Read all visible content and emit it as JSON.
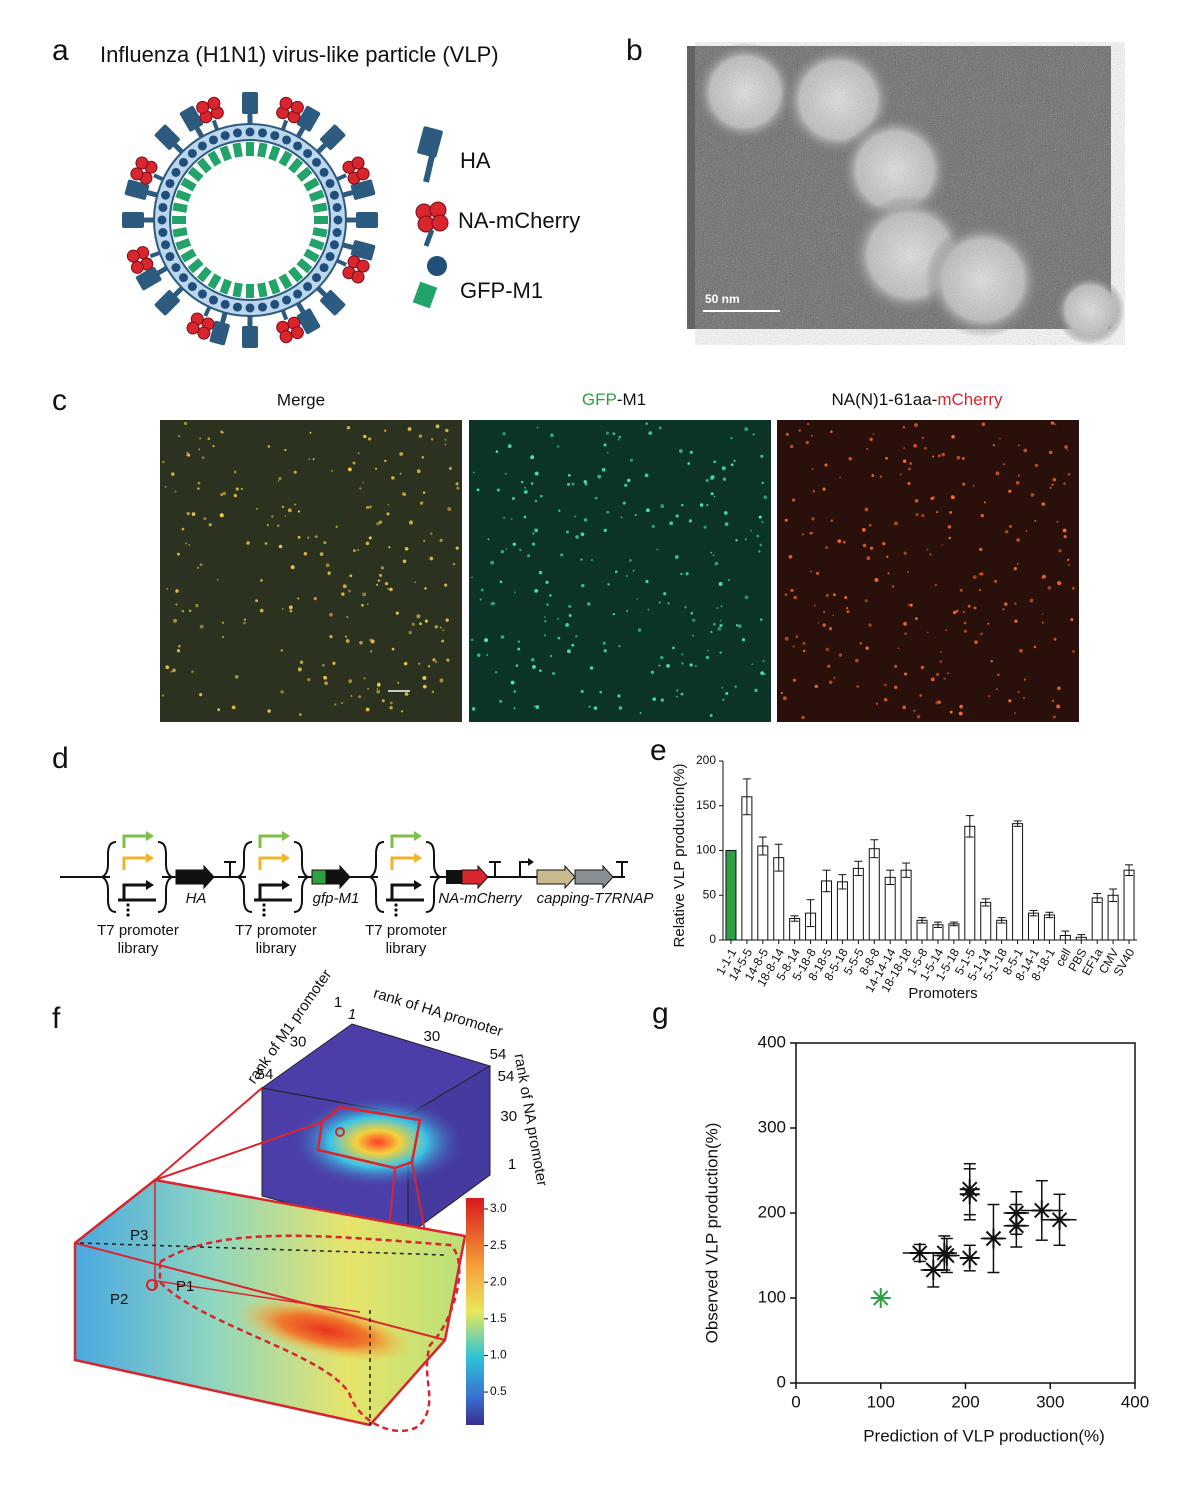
{
  "panel_labels": [
    "a",
    "b",
    "c",
    "d",
    "e",
    "f",
    "g"
  ],
  "a": {
    "title": "Influenza (H1N1) virus-like particle (VLP)",
    "legend": [
      "HA",
      "NA-mCherry",
      "GFP-M1"
    ]
  },
  "b": {
    "scale_bar": "50 nm"
  },
  "c": {
    "merge": "Merge",
    "gfp": {
      "colored": "GFP",
      "rest": "-M1"
    },
    "na": {
      "rest": "NA(N)1-61aa-",
      "colored": "mCherry"
    }
  },
  "d": {
    "genes": [
      "HA",
      "gfp-M1",
      "NA-mCherry",
      "capping-T7RNAP"
    ],
    "library": [
      "T7 promoter",
      "library"
    ]
  },
  "f": {
    "axes": [
      {
        "label": "rank of M1 promoter",
        "ticks": [
          1,
          30,
          54
        ]
      },
      {
        "label": "rank of HA promoter",
        "ticks": [
          1,
          30,
          54
        ]
      },
      {
        "label": "rank of NA promoter",
        "ticks": [
          1,
          30,
          54
        ]
      }
    ],
    "points": [
      "P1",
      "P2",
      "P3"
    ],
    "colorbar": {
      "lim": [
        0.05,
        3.15
      ],
      "ticks": [
        0.5,
        {
          "value": 1,
          "label": "1.0"
        },
        1.5,
        {
          "value": 2,
          "label": "2.0"
        },
        2.5,
        {
          "value": 3,
          "label": "3.0"
        }
      ]
    }
  },
  "chart_data": [
    {
      "type": "bar",
      "ylabel": "Relative VLP production(%)",
      "xlabel": "Promoters",
      "categories": [
        "1-1-1",
        "14-5-5",
        "14-8-5",
        "18-8-14",
        "5-8-14",
        "5-18-8",
        "8-18-5",
        "8-5-18",
        "5-5-5",
        "8-8-8",
        "14-14-14",
        "18-18-18",
        "1-5-8",
        "1-5-14",
        "1-5-18",
        "5-1-5",
        "5-1-14",
        "5-1-18",
        "8-5-1",
        "8-14-1",
        "8-18-1",
        "cell",
        "PBS",
        "EF1a",
        "CMV",
        "SV40"
      ],
      "values": [
        100,
        160,
        105,
        92,
        24,
        30,
        66,
        65,
        80,
        102,
        70,
        78,
        22,
        17,
        18,
        127,
        42,
        22,
        130,
        30,
        28,
        5,
        3,
        47,
        50,
        78
      ],
      "errors": [
        0,
        20,
        10,
        15,
        3,
        15,
        12,
        8,
        8,
        10,
        8,
        8,
        3,
        3,
        2,
        12,
        4,
        3,
        3,
        3,
        3,
        5,
        3,
        5,
        7,
        6
      ],
      "colors": [
        "#2ea043",
        "#ffffff",
        "#ffffff",
        "#ffffff",
        "#ffffff",
        "#ffffff",
        "#ffffff",
        "#ffffff",
        "#ffffff",
        "#ffffff",
        "#ffffff",
        "#ffffff",
        "#ffffff",
        "#ffffff",
        "#ffffff",
        "#ffffff",
        "#ffffff",
        "#ffffff",
        "#ffffff",
        "#ffffff",
        "#ffffff",
        "#ffffff",
        "#ffffff",
        "#ffffff",
        "#ffffff",
        "#ffffff"
      ],
      "ylim": [
        0,
        200
      ],
      "yticks": [
        0,
        50,
        100,
        150,
        200
      ]
    },
    {
      "type": "scatter",
      "xlabel": "Prediction of VLP production(%)",
      "ylabel": "Observed  VLP production(%)",
      "x": [
        100,
        146,
        162,
        175,
        178,
        205,
        205,
        205,
        233,
        260,
        260,
        290,
        311
      ],
      "values": [
        100,
        153,
        133,
        153,
        150,
        147,
        228,
        222,
        170,
        200,
        185,
        203,
        192
      ],
      "xerr": [
        0,
        20,
        15,
        15,
        15,
        10,
        10,
        10,
        15,
        15,
        15,
        25,
        20
      ],
      "yerr": [
        0,
        10,
        20,
        20,
        20,
        15,
        30,
        30,
        40,
        25,
        25,
        35,
        30
      ],
      "colors": [
        "#2ea043",
        "#111111",
        "#111111",
        "#111111",
        "#111111",
        "#111111",
        "#111111",
        "#111111",
        "#111111",
        "#111111",
        "#111111",
        "#111111",
        "#111111"
      ],
      "xlim": [
        0,
        400
      ],
      "ylim": [
        0,
        400
      ],
      "xticks": [
        0,
        100,
        200,
        300,
        400
      ],
      "yticks": [
        0,
        100,
        200,
        300,
        400
      ]
    }
  ]
}
